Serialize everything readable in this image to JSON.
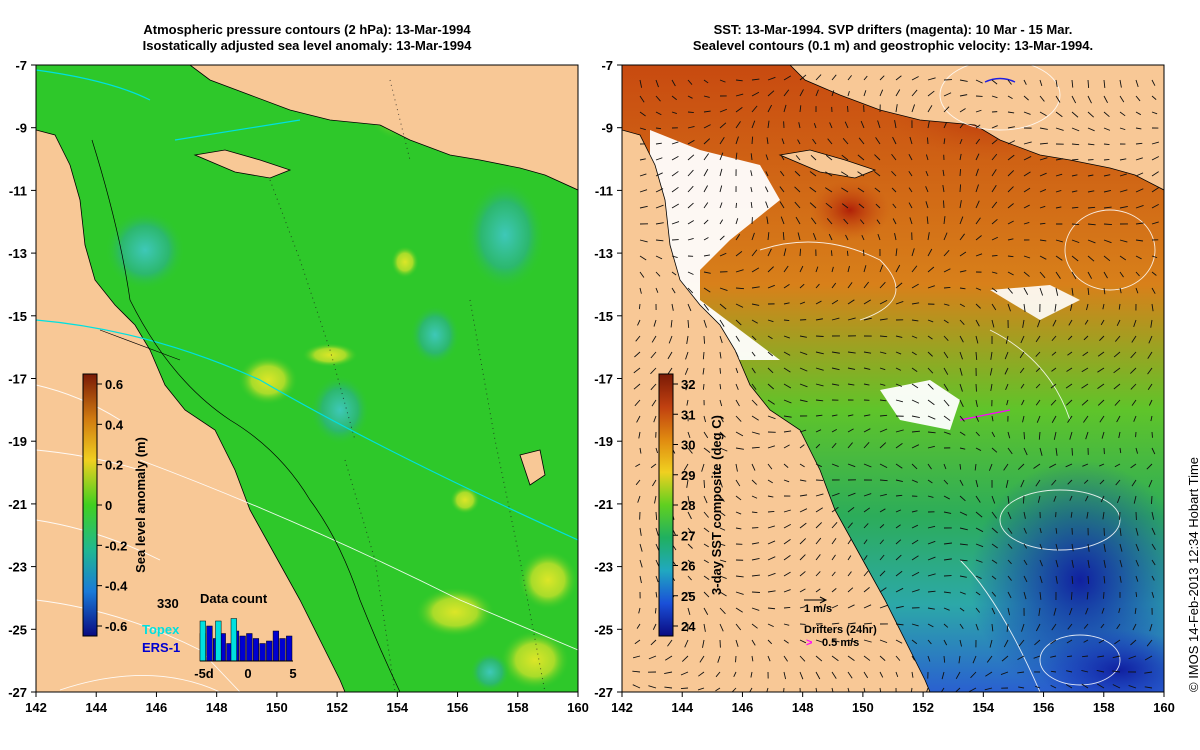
{
  "left_panel": {
    "title_line1": "Atmospheric pressure contours (2 hPa): 13-Mar-1994",
    "title_line2": "Isostatically adjusted sea level anomaly: 13-Mar-1994",
    "colorbar": {
      "label": "Sea level anomaly (m)",
      "ticks": [
        "0.6",
        "0.4",
        "0.2",
        "0",
        "-0.2",
        "-0.4",
        "-0.6"
      ]
    },
    "data_count": {
      "title": "Data count",
      "max_label": "330",
      "topex_label": "Topex",
      "ers_label": "ERS-1",
      "x_ticks": [
        "-5d",
        "0",
        "5"
      ],
      "topex_bars": [
        0.8,
        0,
        0.8,
        0,
        0.85,
        0
      ],
      "ers_bars": [
        0.55,
        0.7,
        0.45,
        0.55,
        0.35,
        0.6,
        0.5,
        0.55,
        0.45,
        0.35,
        0.4,
        0.6,
        0.45,
        0.5
      ]
    },
    "colors": {
      "ocean": "#2ec82a",
      "land": "#f8c896",
      "topex": "#00e0e0",
      "ers": "#0000d0"
    }
  },
  "right_panel": {
    "title_line1": "SST: 13-Mar-1994. SVP drifters (magenta): 10 Mar - 15 Mar.",
    "title_line2": "Sealevel contours (0.1 m) and geostrophic velocity: 13-Mar-1994.",
    "colorbar": {
      "label": "3-day SST composite (deg C)",
      "ticks": [
        "32",
        "31",
        "30",
        "29",
        "28",
        "27",
        "26",
        "25",
        "24"
      ]
    },
    "velocity_legend": "1 m/s",
    "drifter_legend_title": "Drifters (24hr)",
    "drifter_legend_speed": "0.5 m/s",
    "colors": {
      "drifter": "#ff00ff"
    }
  },
  "axes": {
    "x_ticks": [
      "142",
      "144",
      "146",
      "148",
      "150",
      "152",
      "154",
      "156",
      "158",
      "160"
    ],
    "y_ticks": [
      "-7",
      "-9",
      "-11",
      "-13",
      "-15",
      "-17",
      "-19",
      "-21",
      "-23",
      "-25",
      "-27"
    ]
  },
  "credit": "© IMOS 14-Feb-2013 12:34 Hobart Time"
}
